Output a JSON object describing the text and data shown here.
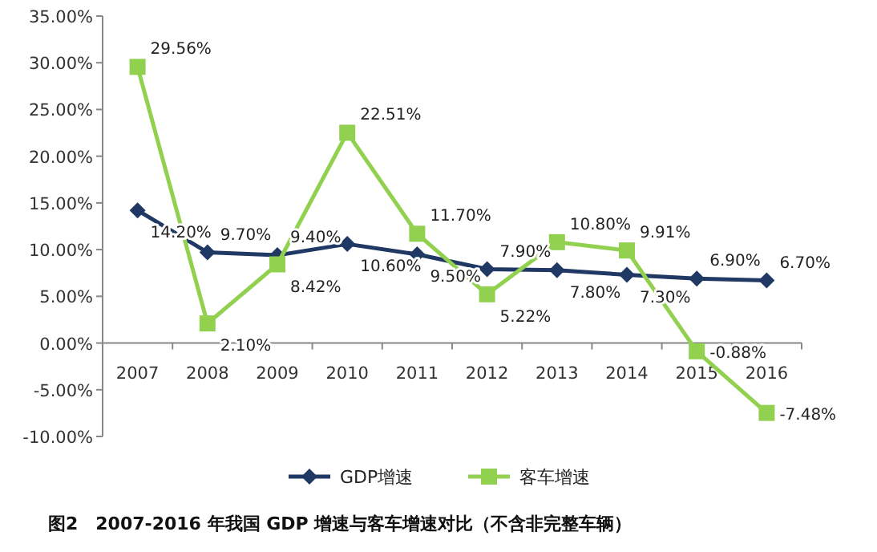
{
  "chart_data": {
    "type": "line",
    "categories": [
      "2007",
      "2008",
      "2009",
      "2010",
      "2011",
      "2012",
      "2013",
      "2014",
      "2015",
      "2016"
    ],
    "series": [
      {
        "name": "GDP增速",
        "color": "#1f3864",
        "marker": "diamond",
        "values": [
          14.2,
          9.7,
          9.4,
          10.6,
          9.5,
          7.9,
          7.8,
          7.3,
          6.9,
          6.7
        ],
        "value_labels": [
          "14.20%",
          "9.70%",
          "9.40%",
          "10.60%",
          "9.50%",
          "7.90%",
          "7.80%",
          "7.30%",
          "6.90%",
          "6.70%"
        ]
      },
      {
        "name": "客车增速",
        "color": "#92d050",
        "marker": "square",
        "values": [
          29.56,
          2.1,
          8.42,
          22.51,
          11.7,
          5.22,
          10.8,
          9.91,
          -0.88,
          -7.48
        ],
        "value_labels": [
          "29.56%",
          "2.10%",
          "8.42%",
          "22.51%",
          "11.70%",
          "5.22%",
          "10.80%",
          "9.91%",
          "-0.88%",
          "-7.48%"
        ]
      }
    ],
    "ylim": [
      -10,
      35
    ],
    "yticks": [
      {
        "value": -10,
        "label": "-10.00%"
      },
      {
        "value": -5,
        "label": "-5.00%"
      },
      {
        "value": 0,
        "label": "0.00%"
      },
      {
        "value": 5,
        "label": "5.00%"
      },
      {
        "value": 10,
        "label": "10.00%"
      },
      {
        "value": 15,
        "label": "15.00%"
      },
      {
        "value": 20,
        "label": "20.00%"
      },
      {
        "value": 25,
        "label": "25.00%"
      },
      {
        "value": 30,
        "label": "30.00%"
      },
      {
        "value": 35,
        "label": "35.00%"
      }
    ],
    "legend": "bottom",
    "grid": false,
    "annotations": [
      "图2　2007-2016 年我国 GDP 增速与客车增速对比（不含非完整车辆）"
    ]
  }
}
